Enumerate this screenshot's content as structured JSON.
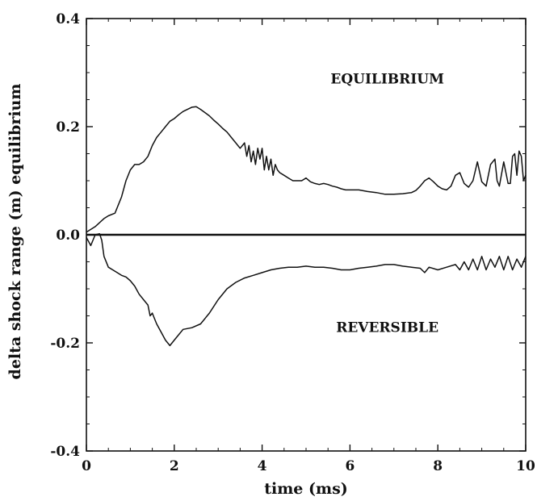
{
  "chart_data": {
    "type": "line",
    "title": "",
    "xlabel": "time (ms)",
    "ylabel": "delta shock range (m) equilibrium",
    "xlim": [
      0,
      10
    ],
    "ylim": [
      -0.4,
      0.4
    ],
    "x_ticks": [
      0,
      2,
      4,
      6,
      8,
      10
    ],
    "y_ticks": [
      -0.4,
      -0.2,
      0.0,
      0.2,
      0.4
    ],
    "x_tick_labels": [
      "0",
      "2",
      "4",
      "6",
      "8",
      "10"
    ],
    "y_tick_labels": [
      "-0.4",
      "-0.2",
      "0.0",
      "0.2",
      "0.4"
    ],
    "grid": false,
    "annotations": [
      {
        "text": "EQUILIBRIUM",
        "x": 6.85,
        "y": 0.28
      },
      {
        "text": "REVERSIBLE",
        "x": 6.85,
        "y": -0.18
      }
    ],
    "reference_line": {
      "y": 0.0
    },
    "series": [
      {
        "name": "EQUILIBRIUM",
        "x": [
          0.0,
          0.2,
          0.4,
          0.5,
          0.65,
          0.8,
          0.9,
          1.0,
          1.1,
          1.2,
          1.3,
          1.4,
          1.5,
          1.6,
          1.7,
          1.8,
          1.9,
          2.0,
          2.1,
          2.2,
          2.3,
          2.4,
          2.5,
          2.6,
          2.7,
          2.8,
          2.9,
          3.0,
          3.1,
          3.2,
          3.3,
          3.4,
          3.5,
          3.6,
          3.65,
          3.7,
          3.75,
          3.8,
          3.85,
          3.9,
          3.95,
          4.0,
          4.05,
          4.1,
          4.15,
          4.2,
          4.25,
          4.3,
          4.35,
          4.4,
          4.5,
          4.6,
          4.7,
          4.8,
          4.9,
          5.0,
          5.1,
          5.2,
          5.3,
          5.4,
          5.5,
          5.6,
          5.7,
          5.8,
          5.9,
          6.0,
          6.2,
          6.4,
          6.6,
          6.8,
          7.0,
          7.2,
          7.4,
          7.5,
          7.6,
          7.7,
          7.8,
          7.9,
          8.0,
          8.1,
          8.2,
          8.3,
          8.4,
          8.5,
          8.6,
          8.7,
          8.8,
          8.9,
          9.0,
          9.1,
          9.2,
          9.3,
          9.35,
          9.4,
          9.5,
          9.6,
          9.65,
          9.7,
          9.75,
          9.8,
          9.85,
          9.9,
          9.95,
          10.0
        ],
        "y": [
          0.005,
          0.015,
          0.03,
          0.035,
          0.04,
          0.07,
          0.1,
          0.12,
          0.13,
          0.13,
          0.135,
          0.145,
          0.165,
          0.18,
          0.19,
          0.2,
          0.21,
          0.215,
          0.222,
          0.228,
          0.232,
          0.236,
          0.237,
          0.232,
          0.226,
          0.22,
          0.212,
          0.205,
          0.197,
          0.19,
          0.18,
          0.17,
          0.16,
          0.17,
          0.145,
          0.165,
          0.135,
          0.155,
          0.13,
          0.16,
          0.14,
          0.16,
          0.12,
          0.145,
          0.12,
          0.14,
          0.11,
          0.13,
          0.12,
          0.115,
          0.11,
          0.105,
          0.1,
          0.1,
          0.1,
          0.105,
          0.098,
          0.095,
          0.093,
          0.095,
          0.093,
          0.09,
          0.088,
          0.085,
          0.083,
          0.083,
          0.083,
          0.08,
          0.078,
          0.075,
          0.075,
          0.076,
          0.078,
          0.082,
          0.09,
          0.1,
          0.105,
          0.098,
          0.09,
          0.085,
          0.083,
          0.09,
          0.11,
          0.115,
          0.095,
          0.088,
          0.1,
          0.135,
          0.098,
          0.09,
          0.13,
          0.14,
          0.1,
          0.09,
          0.135,
          0.095,
          0.095,
          0.145,
          0.15,
          0.11,
          0.155,
          0.145,
          0.1,
          0.11
        ]
      },
      {
        "name": "REVERSIBLE",
        "x": [
          0.0,
          0.1,
          0.2,
          0.3,
          0.35,
          0.4,
          0.5,
          0.6,
          0.7,
          0.8,
          0.9,
          1.0,
          1.1,
          1.2,
          1.3,
          1.4,
          1.45,
          1.5,
          1.55,
          1.6,
          1.7,
          1.8,
          1.9,
          2.0,
          2.1,
          2.2,
          2.4,
          2.6,
          2.8,
          3.0,
          3.2,
          3.4,
          3.6,
          3.8,
          4.0,
          4.2,
          4.4,
          4.6,
          4.8,
          5.0,
          5.2,
          5.4,
          5.6,
          5.8,
          6.0,
          6.2,
          6.4,
          6.6,
          6.8,
          7.0,
          7.2,
          7.4,
          7.6,
          7.7,
          7.8,
          8.0,
          8.2,
          8.4,
          8.5,
          8.6,
          8.7,
          8.8,
          8.9,
          9.0,
          9.1,
          9.2,
          9.3,
          9.4,
          9.5,
          9.6,
          9.7,
          9.8,
          9.9,
          10.0
        ],
        "y": [
          -0.005,
          -0.02,
          0.0,
          0.002,
          -0.01,
          -0.04,
          -0.06,
          -0.065,
          -0.07,
          -0.075,
          -0.078,
          -0.085,
          -0.095,
          -0.11,
          -0.12,
          -0.13,
          -0.15,
          -0.145,
          -0.155,
          -0.165,
          -0.18,
          -0.195,
          -0.205,
          -0.195,
          -0.185,
          -0.175,
          -0.172,
          -0.165,
          -0.145,
          -0.12,
          -0.1,
          -0.088,
          -0.08,
          -0.075,
          -0.07,
          -0.065,
          -0.062,
          -0.06,
          -0.06,
          -0.058,
          -0.06,
          -0.06,
          -0.062,
          -0.065,
          -0.065,
          -0.062,
          -0.06,
          -0.058,
          -0.055,
          -0.055,
          -0.058,
          -0.06,
          -0.062,
          -0.07,
          -0.06,
          -0.065,
          -0.06,
          -0.055,
          -0.065,
          -0.05,
          -0.065,
          -0.045,
          -0.065,
          -0.04,
          -0.065,
          -0.045,
          -0.06,
          -0.04,
          -0.065,
          -0.04,
          -0.065,
          -0.045,
          -0.06,
          -0.04
        ]
      }
    ]
  }
}
